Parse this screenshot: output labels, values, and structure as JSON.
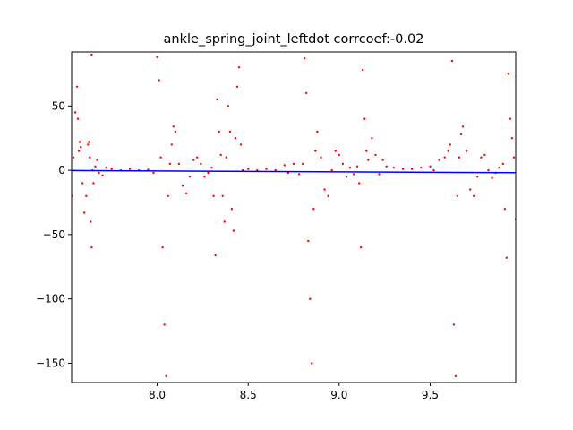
{
  "chart_data": {
    "type": "scatter",
    "title": "ankle_spring_joint_leftdot corrcoef:-0.02",
    "xlabel": "",
    "ylabel": "",
    "xlim": [
      7.53,
      9.97
    ],
    "ylim": [
      -165,
      92
    ],
    "xticks": [
      8.0,
      8.5,
      9.0,
      9.5
    ],
    "xtick_labels": [
      "8.0",
      "8.5",
      "9.0",
      "9.5"
    ],
    "yticks": [
      50,
      0,
      -50,
      -100,
      -150
    ],
    "ytick_labels": [
      "50",
      "0",
      "−50",
      "−100",
      "−150"
    ],
    "grid": false,
    "legend": "none",
    "series": [
      {
        "color": "#ff0000",
        "marker": "dot",
        "points": [
          [
            7.53,
            -20
          ],
          [
            7.54,
            10
          ],
          [
            7.55,
            45
          ],
          [
            7.56,
            65
          ],
          [
            7.565,
            40
          ],
          [
            7.57,
            15
          ],
          [
            7.575,
            22
          ],
          [
            7.58,
            18
          ],
          [
            7.59,
            -10
          ],
          [
            7.6,
            -33
          ],
          [
            7.61,
            -20
          ],
          [
            7.62,
            20
          ],
          [
            7.625,
            22
          ],
          [
            7.63,
            10
          ],
          [
            7.635,
            -40
          ],
          [
            7.64,
            -60
          ],
          [
            7.64,
            90
          ],
          [
            7.645,
            0
          ],
          [
            7.65,
            -10
          ],
          [
            7.66,
            3
          ],
          [
            7.67,
            8
          ],
          [
            7.68,
            -2
          ],
          [
            7.7,
            -4
          ],
          [
            7.72,
            2
          ],
          [
            7.75,
            1
          ],
          [
            7.8,
            0
          ],
          [
            7.85,
            1
          ],
          [
            7.9,
            0
          ],
          [
            7.95,
            0.5
          ],
          [
            7.98,
            -2
          ],
          [
            8.0,
            88
          ],
          [
            8.01,
            70
          ],
          [
            8.02,
            10
          ],
          [
            8.03,
            -60
          ],
          [
            8.04,
            -120
          ],
          [
            8.05,
            -160
          ],
          [
            8.06,
            -20
          ],
          [
            8.07,
            5
          ],
          [
            8.08,
            20
          ],
          [
            8.09,
            34
          ],
          [
            8.1,
            30
          ],
          [
            8.12,
            5
          ],
          [
            8.14,
            -12
          ],
          [
            8.16,
            -18
          ],
          [
            8.18,
            -5
          ],
          [
            8.2,
            8
          ],
          [
            8.22,
            10
          ],
          [
            8.24,
            5
          ],
          [
            8.26,
            -5
          ],
          [
            8.28,
            -2
          ],
          [
            8.3,
            2
          ],
          [
            8.31,
            -20
          ],
          [
            8.32,
            -66
          ],
          [
            8.33,
            55
          ],
          [
            8.34,
            30
          ],
          [
            8.35,
            12
          ],
          [
            8.36,
            -20
          ],
          [
            8.37,
            -40
          ],
          [
            8.38,
            10
          ],
          [
            8.39,
            50
          ],
          [
            8.4,
            30
          ],
          [
            8.41,
            -30
          ],
          [
            8.42,
            -47
          ],
          [
            8.43,
            25
          ],
          [
            8.44,
            65
          ],
          [
            8.45,
            80
          ],
          [
            8.46,
            20
          ],
          [
            8.47,
            0
          ],
          [
            8.5,
            1
          ],
          [
            8.55,
            0
          ],
          [
            8.6,
            1
          ],
          [
            8.65,
            0
          ],
          [
            8.7,
            4
          ],
          [
            8.72,
            -2
          ],
          [
            8.75,
            5
          ],
          [
            8.78,
            -3
          ],
          [
            8.8,
            5
          ],
          [
            8.81,
            87
          ],
          [
            8.82,
            60
          ],
          [
            8.83,
            -55
          ],
          [
            8.84,
            -100
          ],
          [
            8.85,
            -150
          ],
          [
            8.86,
            -30
          ],
          [
            8.87,
            15
          ],
          [
            8.88,
            30
          ],
          [
            8.9,
            10
          ],
          [
            8.92,
            -15
          ],
          [
            8.94,
            -20
          ],
          [
            8.96,
            0
          ],
          [
            8.98,
            15
          ],
          [
            9.0,
            12
          ],
          [
            9.02,
            5
          ],
          [
            9.04,
            -5
          ],
          [
            9.06,
            2
          ],
          [
            9.08,
            -3
          ],
          [
            9.1,
            3
          ],
          [
            9.11,
            -10
          ],
          [
            9.12,
            -60
          ],
          [
            9.13,
            78
          ],
          [
            9.14,
            40
          ],
          [
            9.15,
            15
          ],
          [
            9.16,
            8
          ],
          [
            9.18,
            25
          ],
          [
            9.2,
            12
          ],
          [
            9.22,
            -3
          ],
          [
            9.24,
            8
          ],
          [
            9.26,
            3
          ],
          [
            9.3,
            2
          ],
          [
            9.35,
            1
          ],
          [
            9.4,
            1
          ],
          [
            9.45,
            2
          ],
          [
            9.5,
            3
          ],
          [
            9.52,
            0
          ],
          [
            9.55,
            8
          ],
          [
            9.58,
            10
          ],
          [
            9.6,
            15
          ],
          [
            9.61,
            20
          ],
          [
            9.62,
            85
          ],
          [
            9.63,
            -120
          ],
          [
            9.64,
            -160
          ],
          [
            9.65,
            -20
          ],
          [
            9.66,
            10
          ],
          [
            9.67,
            28
          ],
          [
            9.68,
            34
          ],
          [
            9.7,
            15
          ],
          [
            9.72,
            -15
          ],
          [
            9.74,
            -20
          ],
          [
            9.76,
            -5
          ],
          [
            9.78,
            10
          ],
          [
            9.8,
            12
          ],
          [
            9.82,
            0
          ],
          [
            9.84,
            -6
          ],
          [
            9.86,
            -2
          ],
          [
            9.88,
            2
          ],
          [
            9.9,
            5
          ],
          [
            9.91,
            -30
          ],
          [
            9.92,
            -68
          ],
          [
            9.93,
            75
          ],
          [
            9.94,
            40
          ],
          [
            9.95,
            25
          ],
          [
            9.96,
            10
          ],
          [
            9.97,
            -38
          ]
        ]
      },
      {
        "color": "#0000ff",
        "marker": "line",
        "points": [
          [
            7.53,
            -0.2
          ],
          [
            9.97,
            -1.9
          ]
        ]
      }
    ]
  }
}
